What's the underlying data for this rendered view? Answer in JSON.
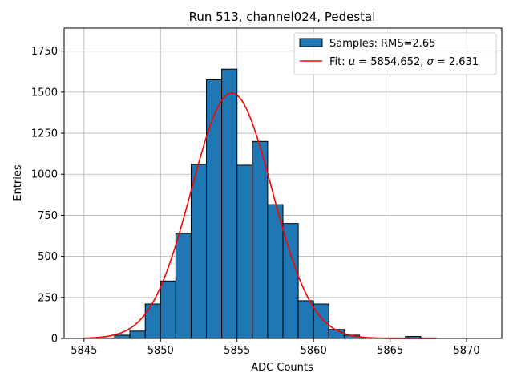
{
  "chart_data": {
    "type": "bar",
    "title": "Run 513, channel024, Pedestal",
    "xlabel": "ADC Counts",
    "ylabel": "Entries",
    "xlim": [
      5843.7,
      5872.3
    ],
    "ylim": [
      0,
      1890
    ],
    "grid": true,
    "legend_placement": "top-right",
    "xticks": [
      5845,
      5850,
      5855,
      5860,
      5865,
      5870
    ],
    "yticks": [
      0,
      250,
      500,
      750,
      1000,
      1250,
      1500,
      1750
    ],
    "bin_edges": [
      5845,
      5846,
      5847,
      5848,
      5849,
      5850,
      5851,
      5852,
      5853,
      5854,
      5855,
      5856,
      5857,
      5858,
      5859,
      5860,
      5861,
      5862,
      5863,
      5864,
      5865,
      5866,
      5867,
      5868
    ],
    "counts": [
      2,
      3,
      20,
      45,
      210,
      350,
      640,
      1060,
      1575,
      1640,
      1055,
      1200,
      815,
      700,
      230,
      210,
      55,
      20,
      5,
      3,
      3,
      12,
      3
    ],
    "series": [
      {
        "name": "Samples: RMS=2.65",
        "kind": "histogram",
        "color": "#1f77b4",
        "edgecolor": "#000000"
      },
      {
        "name_prefix": "Fit: ",
        "name_mu_symbol": "μ",
        "name_mid": " = 5854.652, ",
        "name_sigma_symbol": "σ",
        "name_suffix": " = 2.631",
        "kind": "gaussian",
        "color": "#ff0000",
        "mu": 5854.652,
        "sigma": 2.631,
        "amplitude": 1495,
        "x_range": [
          5845,
          5868
        ]
      }
    ]
  }
}
